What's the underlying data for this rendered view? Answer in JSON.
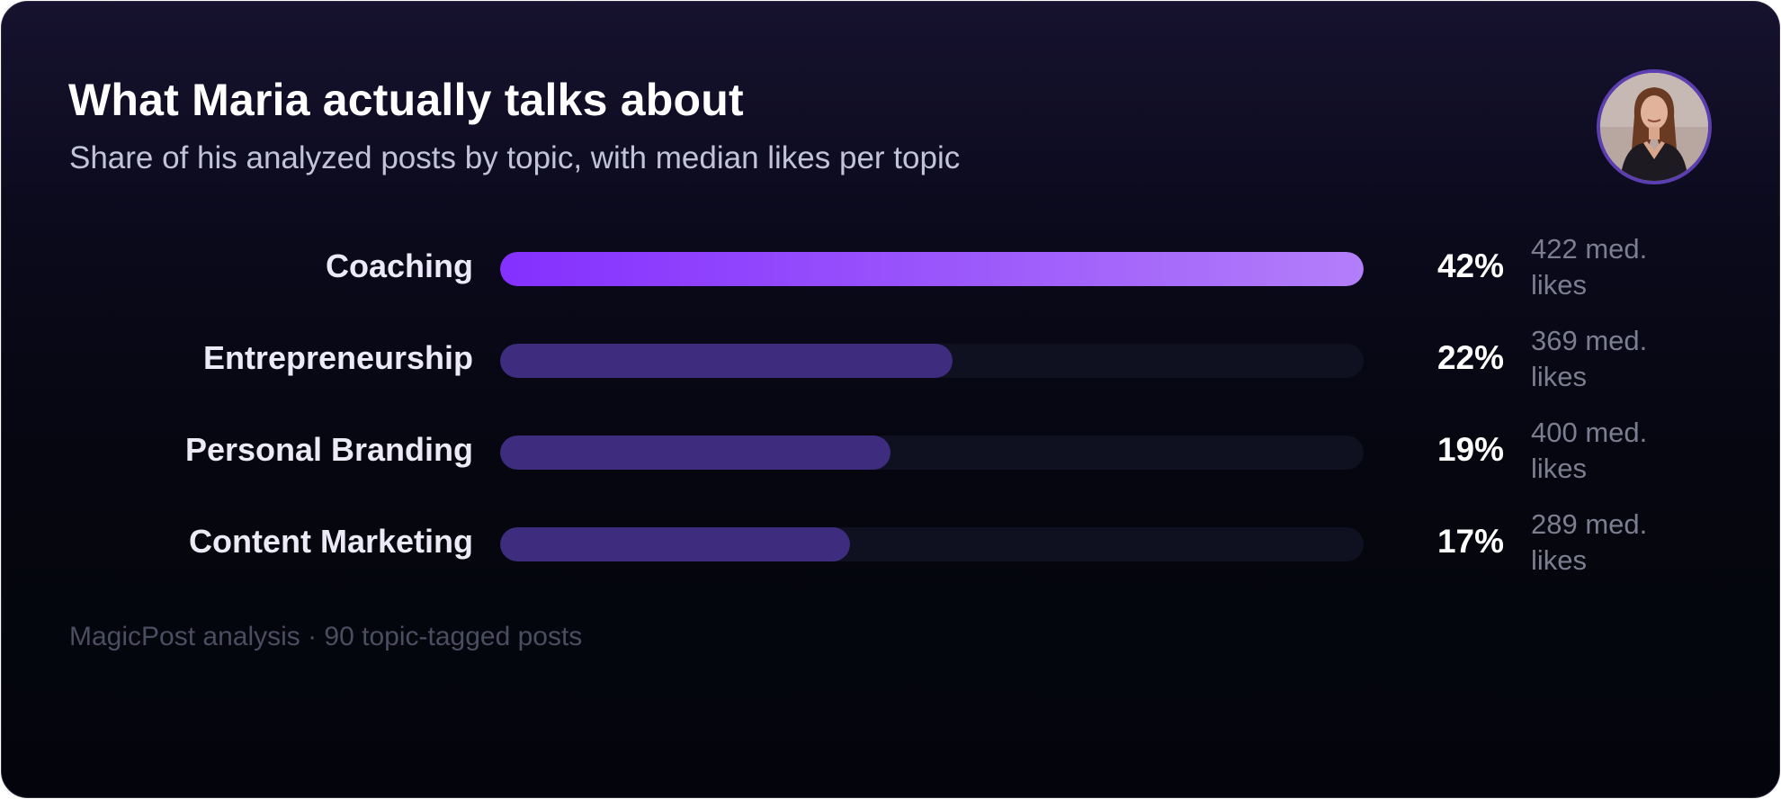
{
  "header": {
    "title": "What Maria actually talks about",
    "subtitle": "Share of his analyzed posts by topic, with median likes per topic"
  },
  "footer": {
    "source": "MagicPost analysis · 90 topic-tagged posts"
  },
  "avatar": {
    "icon": "person-avatar-photo"
  },
  "colors": {
    "background": "#05060f",
    "top_bar_gradient_start": "#8430ff",
    "top_bar_gradient_end": "#b37efa",
    "bar": "#3e2c7e",
    "track": "#0f1120",
    "avatar_ring": "#5b3fb0"
  },
  "chart_data": {
    "type": "bar",
    "orientation": "horizontal",
    "categories": [
      "Coaching",
      "Entrepreneurship",
      "Personal Branding",
      "Content Marketing"
    ],
    "values": [
      42,
      22,
      19,
      17
    ],
    "value_labels": [
      "42%",
      "22%",
      "19%",
      "17%"
    ],
    "median_likes_labels": [
      "422 med. likes",
      "369 med. likes",
      "400 med. likes",
      "289 med. likes"
    ],
    "xlim": [
      0,
      42
    ],
    "grid": false,
    "legend": "none"
  }
}
